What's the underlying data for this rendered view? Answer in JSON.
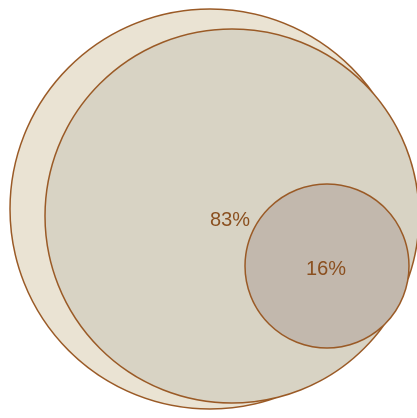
{
  "diagram": {
    "type": "nested-circles",
    "colors": {
      "outer_fill": "#eae3d3",
      "middle_fill": "#d8d3c4",
      "inner_fill": "#c2b8ad",
      "stroke": "#9a5a26",
      "label": "#8a4f1f"
    },
    "labels": {
      "middle": "83%",
      "inner": "16%"
    }
  }
}
